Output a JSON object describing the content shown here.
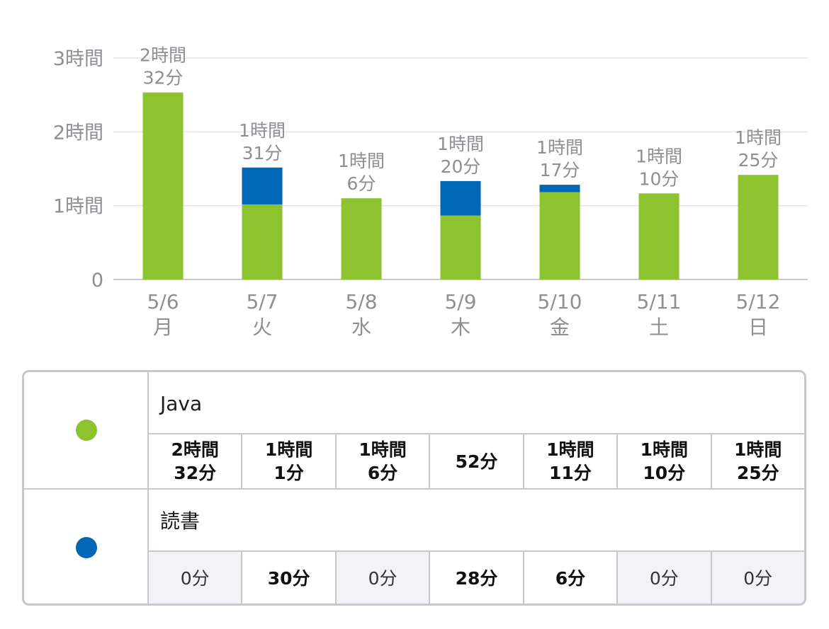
{
  "chart_data": {
    "type": "bar",
    "stacked": true,
    "categories": [
      "5/6\n月",
      "5/7\n火",
      "5/8\n水",
      "5/9\n木",
      "5/10\n金",
      "5/11\n土",
      "5/12\n日"
    ],
    "series": [
      {
        "name": "Java",
        "color": "#8dc32f",
        "values": [
          152,
          61,
          66,
          52,
          71,
          70,
          85
        ]
      },
      {
        "name": "読書",
        "color": "#0067b6",
        "values": [
          0,
          30,
          0,
          28,
          6,
          0,
          0
        ]
      }
    ],
    "bar_labels": [
      "2時間\n32分",
      "1時間\n31分",
      "1時間\n6分",
      "1時間\n20分",
      "1時間\n17分",
      "1時間\n10分",
      "1時間\n25分"
    ],
    "yticks": [
      {
        "value": 0,
        "label": "0"
      },
      {
        "value": 60,
        "label": "1時間"
      },
      {
        "value": 120,
        "label": "2時間"
      },
      {
        "value": 180,
        "label": "3時間"
      }
    ],
    "ylim": [
      0,
      180
    ],
    "grid": true,
    "title": "",
    "xlabel": "",
    "ylabel": ""
  },
  "table": {
    "rows": [
      {
        "name": "Java",
        "color": "#8dc32f",
        "cells": [
          "2時間\n32分",
          "1時間\n1分",
          "1時間\n6分",
          "52分",
          "1時間\n11分",
          "1時間\n10分",
          "1時間\n25分"
        ]
      },
      {
        "name": "読書",
        "color": "#0067b6",
        "cells": [
          "0分",
          "30分",
          "0分",
          "28分",
          "6分",
          "0分",
          "0分"
        ]
      }
    ]
  }
}
